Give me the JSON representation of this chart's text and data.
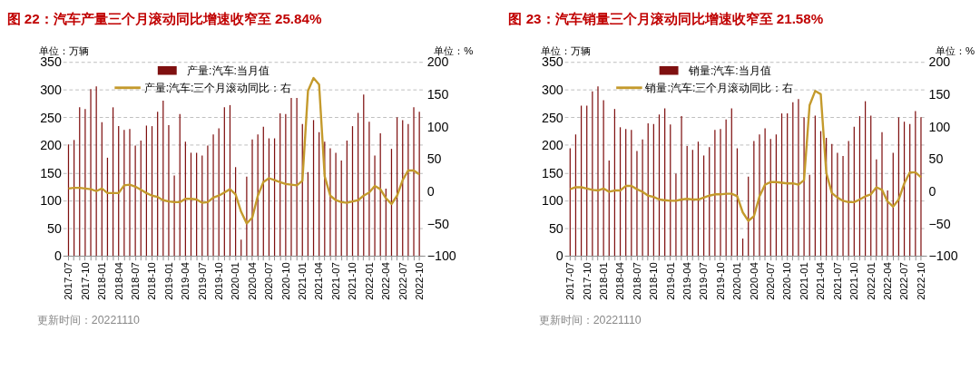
{
  "chart_data": [
    {
      "type": "bar",
      "title": "图 22：汽车产量三个月滚动同比增速收窄至 25.84%",
      "ylabel": "单位：万辆",
      "y2label": "单位：%",
      "categories": [
        "2017-07",
        null,
        null,
        "2017-10",
        null,
        null,
        "2018-01",
        null,
        null,
        "2018-04",
        null,
        null,
        "2018-07",
        null,
        null,
        "2018-10",
        null,
        null,
        "2019-01",
        null,
        null,
        "2019-04",
        null,
        null,
        "2019-07",
        null,
        null,
        "2019-10",
        null,
        null,
        "2020-01",
        null,
        null,
        "2020-04",
        null,
        null,
        "2020-07",
        null,
        null,
        "2020-10",
        null,
        null,
        "2021-01",
        null,
        null,
        "2021-04",
        null,
        null,
        "2021-07",
        null,
        null,
        "2021-10",
        null,
        null,
        "2022-01",
        null,
        null,
        "2022-04",
        null,
        null,
        "2022-07",
        null,
        null,
        "2022-10"
      ],
      "series": [
        {
          "name": "产量:汽车:当月值",
          "color": "#7f1010",
          "values": [
            201,
            209,
            268,
            265,
            301,
            306,
            241,
            177,
            268,
            234,
            227,
            229,
            199,
            208,
            235,
            234,
            260,
            280,
            236,
            145,
            256,
            206,
            186,
            186,
            181,
            199,
            219,
            230,
            268,
            272,
            160,
            29,
            143,
            210,
            219,
            233,
            212,
            212,
            257,
            256,
            285,
            285,
            238,
            151,
            245,
            223,
            206,
            194,
            186,
            172,
            208,
            234,
            258,
            291,
            242,
            181,
            221,
            121,
            193,
            250,
            245,
            238,
            268,
            260
          ]
        },
        {
          "name": "产量:汽车:三个月滚动同比：右",
          "type": "line",
          "axis": "y2",
          "color": "#c49a2c",
          "values": [
            4,
            5,
            5,
            4,
            3,
            0,
            4,
            -3,
            -3,
            -3,
            9,
            10,
            7,
            2,
            -3,
            -7,
            -9,
            -14,
            -16,
            -17,
            -17,
            -12,
            -12,
            -13,
            -18,
            -17,
            -10,
            -7,
            -2,
            3,
            -5,
            -32,
            -50,
            -41,
            -7,
            14,
            20,
            17,
            14,
            11,
            10,
            9,
            16,
            155,
            175,
            165,
            23,
            -7,
            -14,
            -17,
            -18,
            -16,
            -14,
            -7,
            -2,
            8,
            3,
            -11,
            -20,
            -7,
            17,
            32,
            32,
            25.84
          ]
        }
      ],
      "ylim": [
        0,
        350
      ],
      "yticks": [
        0,
        50,
        100,
        150,
        200,
        250,
        300,
        350
      ],
      "y2lim": [
        -100,
        200
      ],
      "y2ticks": [
        -100,
        -50,
        0,
        50,
        100,
        150,
        200
      ],
      "grid": "y",
      "legend": "top",
      "marker": "none",
      "line_style": "solid",
      "annotations": [
        "更新时间：20221110"
      ]
    },
    {
      "type": "bar",
      "title": "图 23：汽车销量三个月滚动同比增速收窄至 21.58%",
      "ylabel": "单位：万辆",
      "y2label": "单位：%",
      "categories": [
        "2017-07",
        null,
        null,
        "2017-10",
        null,
        null,
        "2018-01",
        null,
        null,
        "2018-04",
        null,
        null,
        "2018-07",
        null,
        null,
        "2018-10",
        null,
        null,
        "2019-01",
        null,
        null,
        "2019-04",
        null,
        null,
        "2019-07",
        null,
        null,
        "2019-10",
        null,
        null,
        "2020-01",
        null,
        null,
        "2020-04",
        null,
        null,
        "2020-07",
        null,
        null,
        "2020-10",
        null,
        null,
        "2021-01",
        null,
        null,
        "2021-04",
        null,
        null,
        "2021-07",
        null,
        null,
        "2021-10",
        null,
        null,
        "2022-01",
        null,
        null,
        "2022-04",
        null,
        null,
        "2022-07",
        null,
        null,
        "2022-10"
      ],
      "series": [
        {
          "name": "销量:汽车:当月值",
          "color": "#7f1010",
          "values": [
            194,
            219,
            271,
            271,
            297,
            306,
            281,
            172,
            265,
            232,
            229,
            227,
            189,
            210,
            239,
            238,
            255,
            266,
            237,
            148,
            252,
            198,
            191,
            206,
            181,
            196,
            227,
            229,
            246,
            266,
            194,
            31,
            143,
            207,
            219,
            230,
            211,
            219,
            257,
            257,
            277,
            283,
            250,
            146,
            253,
            225,
            213,
            202,
            186,
            180,
            207,
            233,
            252,
            279,
            253,
            174,
            223,
            118,
            186,
            250,
            242,
            238,
            261,
            250
          ]
        },
        {
          "name": "销量:汽车:三个月滚动同比：右",
          "type": "line",
          "axis": "y2",
          "color": "#c49a2c",
          "values": [
            3,
            6,
            6,
            4,
            2,
            1,
            4,
            -1,
            1,
            1,
            8,
            8,
            3,
            -1,
            -7,
            -9,
            -13,
            -14,
            -15,
            -15,
            -13,
            -12,
            -13,
            -13,
            -10,
            -7,
            -5,
            -5,
            -4,
            -4,
            -8,
            -33,
            -46,
            -39,
            -8,
            10,
            14,
            14,
            13,
            12,
            12,
            10,
            17,
            133,
            155,
            150,
            28,
            -3,
            -10,
            -15,
            -17,
            -17,
            -13,
            -8,
            -5,
            6,
            2,
            -16,
            -24,
            -13,
            12,
            29,
            29,
            21.58
          ]
        }
      ],
      "ylim": [
        0,
        350
      ],
      "yticks": [
        0,
        50,
        100,
        150,
        200,
        250,
        300,
        350
      ],
      "y2lim": [
        -100,
        200
      ],
      "y2ticks": [
        -100,
        -50,
        0,
        50,
        100,
        150,
        200
      ],
      "grid": "y",
      "legend": "top",
      "marker": "none",
      "line_style": "solid",
      "annotations": [
        "更新时间：20221110"
      ]
    }
  ]
}
